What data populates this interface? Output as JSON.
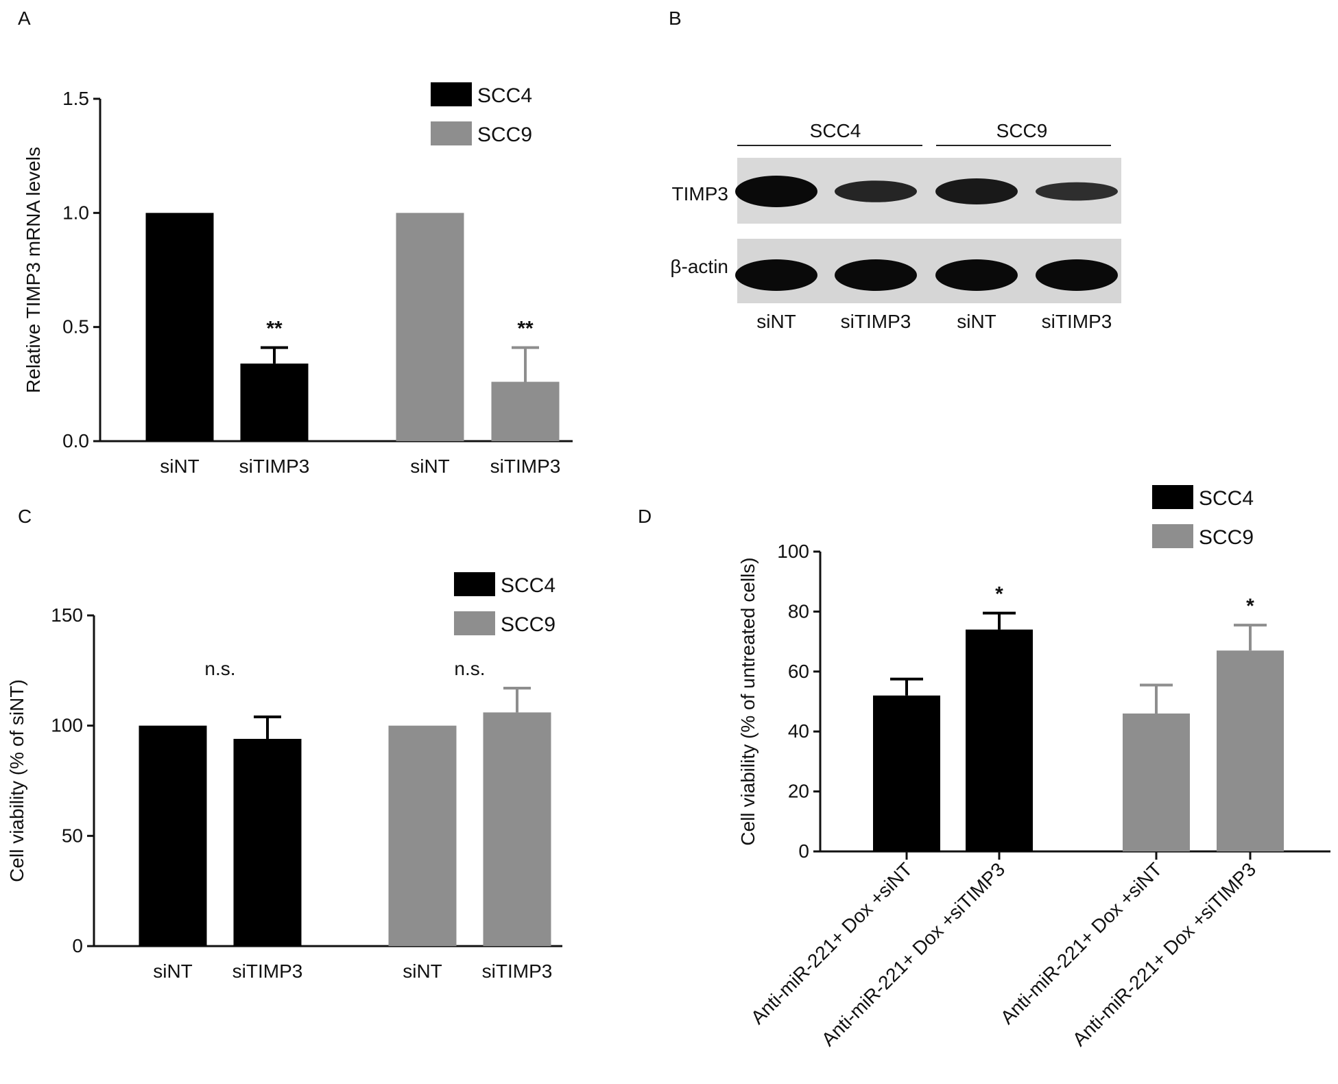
{
  "colors": {
    "scc4": "#000000",
    "scc9": "#8e8e8e"
  },
  "chart_data": [
    {
      "panel": "A",
      "type": "bar",
      "ylabel": "Relative TIMP3 mRNA levels",
      "ylim": [
        0,
        1.5
      ],
      "yticks": [
        "0.0",
        "0.5",
        "1.0",
        "1.5"
      ],
      "categories": [
        "siNT",
        "siTIMP3",
        "siNT",
        "siTIMP3"
      ],
      "legend": [
        "SCC4",
        "SCC9"
      ],
      "legend_position": "top-right",
      "bars": [
        {
          "series": "SCC4",
          "value": 1.0,
          "error": 0
        },
        {
          "series": "SCC4",
          "value": 0.34,
          "error": 0.07,
          "sig": "**"
        },
        {
          "series": "SCC9",
          "value": 1.0,
          "error": 0
        },
        {
          "series": "SCC9",
          "value": 0.26,
          "error": 0.15,
          "sig": "**"
        }
      ]
    },
    {
      "panel": "C",
      "type": "bar",
      "ylabel": "Cell viability (% of siNT)",
      "ylim": [
        0,
        150
      ],
      "yticks": [
        "0",
        "50",
        "100",
        "150"
      ],
      "categories": [
        "siNT",
        "siTIMP3",
        "siNT",
        "siTIMP3"
      ],
      "legend": [
        "SCC4",
        "SCC9"
      ],
      "legend_position": "top-right",
      "group_labels": [
        "n.s.",
        "n.s."
      ],
      "bars": [
        {
          "series": "SCC4",
          "value": 100,
          "error": 0
        },
        {
          "series": "SCC4",
          "value": 94,
          "error": 10
        },
        {
          "series": "SCC9",
          "value": 100,
          "error": 0
        },
        {
          "series": "SCC9",
          "value": 106,
          "error": 11
        }
      ]
    },
    {
      "panel": "D",
      "type": "bar",
      "ylabel": "Cell viability (% of untreated cells)",
      "ylim": [
        0,
        100
      ],
      "yticks": [
        "0",
        "20",
        "40",
        "60",
        "80",
        "100"
      ],
      "categories": [
        "Anti-miR-221+ Dox +siNT",
        "Anti-miR-221+ Dox +siTIMP3",
        "Anti-miR-221+ Dox +siNT",
        "Anti-miR-221+ Dox +siTIMP3"
      ],
      "legend": [
        "SCC4",
        "SCC9"
      ],
      "legend_position": "top-right",
      "bars": [
        {
          "series": "SCC4",
          "value": 52,
          "error": 5.5
        },
        {
          "series": "SCC4",
          "value": 74,
          "error": 5.5,
          "sig": "*"
        },
        {
          "series": "SCC9",
          "value": 46,
          "error": 9.5
        },
        {
          "series": "SCC9",
          "value": 67,
          "error": 8.5,
          "sig": "*"
        }
      ]
    }
  ],
  "panel_labels": [
    "A",
    "B",
    "C",
    "D"
  ],
  "western_blot": {
    "groups": [
      "SCC4",
      "SCC9"
    ],
    "rows": [
      "TIMP3",
      "β-actin"
    ],
    "lanes": [
      "siNT",
      "siTIMP3",
      "siNT",
      "siTIMP3"
    ],
    "band_intensity": {
      "TIMP3": [
        1.0,
        0.55,
        0.75,
        0.4
      ],
      "β-actin": [
        1.0,
        1.0,
        1.0,
        1.0
      ]
    }
  }
}
